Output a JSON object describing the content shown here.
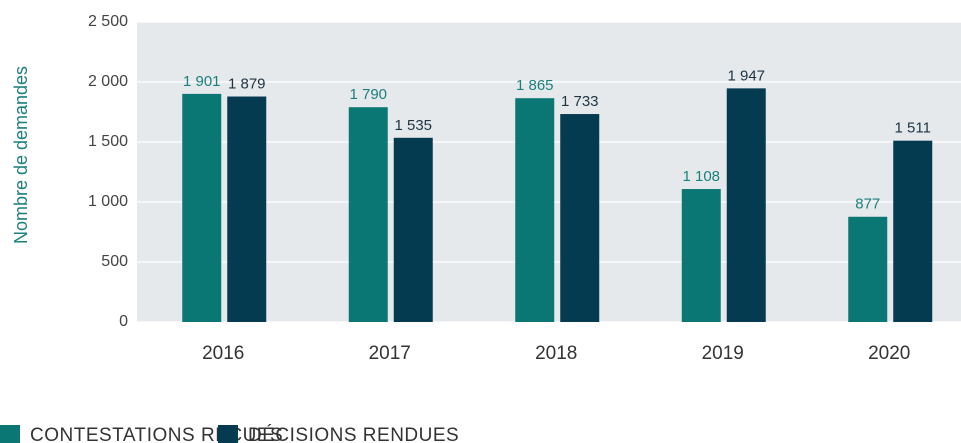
{
  "chart_data": {
    "type": "bar",
    "y_label": "Nombre de demandes",
    "categories": [
      "2016",
      "2017",
      "2018",
      "2019",
      "2020"
    ],
    "series": [
      {
        "name": "CONTESTATIONS RECUES",
        "color": "#0b7774",
        "label_color": "#1b7f7c",
        "values": [
          1901,
          1790,
          1865,
          1108,
          877
        ],
        "value_labels": [
          "1 901",
          "1 790",
          "1 865",
          "1 108",
          "877"
        ]
      },
      {
        "name": "DÉCISIONS RENDUES",
        "color": "#053b50",
        "label_color": "#1d3442",
        "values": [
          1879,
          1535,
          1733,
          1947,
          1511
        ],
        "value_labels": [
          "1 879",
          "1 535",
          "1 733",
          "1 947",
          "1 511"
        ]
      }
    ],
    "ylim": [
      0,
      2500
    ],
    "yticks": [
      0,
      500,
      {
        "value": 1000,
        "label": "1 000"
      },
      {
        "value": 1500,
        "label": "1 500"
      },
      {
        "value": 2000,
        "label": "2 000"
      },
      {
        "value": 2500,
        "label": "2 500"
      }
    ],
    "grid": true,
    "legend": "bottom-left"
  }
}
